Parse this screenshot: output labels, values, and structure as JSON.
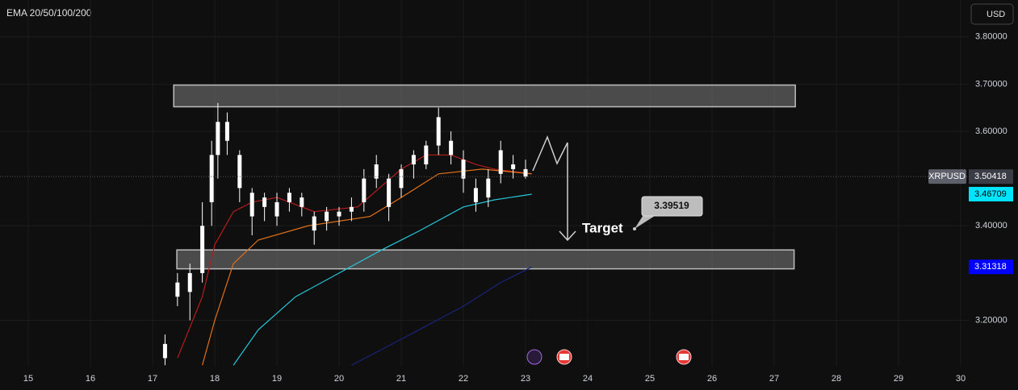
{
  "header": {
    "indicator": "EMA 20/50/100/200",
    "currency": "USD"
  },
  "chart_data": {
    "type": "candlestick",
    "symbol": "XRPUSD",
    "last_price": 3.50418,
    "xlim": [
      14.545,
      30.13
    ],
    "ylim": [
      3.102,
      3.878
    ],
    "xticks": [
      15,
      16,
      17,
      18,
      19,
      20,
      21,
      22,
      23,
      24,
      25,
      26,
      27,
      28,
      29,
      30
    ],
    "yticks": [
      {
        "value": 3.8,
        "label": "3.80000"
      },
      {
        "value": 3.7,
        "label": "3.70000"
      },
      {
        "value": 3.6,
        "label": "3.60000"
      },
      {
        "value": 3.4,
        "label": "3.40000"
      },
      {
        "value": 3.2,
        "label": "3.20000"
      }
    ],
    "grid": true,
    "color": "#ffffff",
    "candles": {
      "x": [
        17.2,
        17.4,
        17.6,
        17.8,
        17.95,
        18.05,
        18.2,
        18.4,
        18.6,
        18.8,
        19.0,
        19.2,
        19.4,
        19.6,
        19.8,
        20.0,
        20.2,
        20.4,
        20.6,
        20.8,
        21.0,
        21.2,
        21.4,
        21.6,
        21.8,
        22.0,
        22.2,
        22.4,
        22.6,
        22.8,
        23.0
      ],
      "open": [
        3.12,
        3.25,
        3.26,
        3.3,
        3.45,
        3.55,
        3.62,
        3.55,
        3.47,
        3.44,
        3.42,
        3.45,
        3.46,
        3.42,
        3.41,
        3.42,
        3.43,
        3.45,
        3.5,
        3.5,
        3.48,
        3.53,
        3.53,
        3.57,
        3.58,
        3.54,
        3.48,
        3.46,
        3.51,
        3.53,
        3.52
      ],
      "high": [
        3.17,
        3.3,
        3.32,
        3.45,
        3.58,
        3.66,
        3.64,
        3.56,
        3.48,
        3.47,
        3.47,
        3.48,
        3.47,
        3.43,
        3.44,
        3.44,
        3.46,
        3.52,
        3.55,
        3.51,
        3.53,
        3.56,
        3.58,
        3.65,
        3.6,
        3.56,
        3.5,
        3.52,
        3.58,
        3.55,
        3.54
      ],
      "low": [
        3.105,
        3.23,
        3.2,
        3.28,
        3.4,
        3.5,
        3.55,
        3.45,
        3.38,
        3.41,
        3.4,
        3.43,
        3.42,
        3.36,
        3.39,
        3.4,
        3.41,
        3.43,
        3.48,
        3.41,
        3.46,
        3.5,
        3.52,
        3.55,
        3.53,
        3.47,
        3.43,
        3.44,
        3.49,
        3.5,
        3.5
      ],
      "close": [
        3.15,
        3.28,
        3.3,
        3.4,
        3.55,
        3.62,
        3.58,
        3.48,
        3.42,
        3.46,
        3.45,
        3.47,
        3.44,
        3.39,
        3.43,
        3.43,
        3.44,
        3.5,
        3.53,
        3.44,
        3.52,
        3.55,
        3.57,
        3.63,
        3.55,
        3.5,
        3.45,
        3.5,
        3.56,
        3.52,
        3.50418
      ]
    },
    "series": [
      {
        "color": "#b71c1c",
        "x": [
          17.4,
          17.8,
          18.0,
          18.3,
          18.6,
          19.0,
          19.6,
          20.3,
          21.0,
          21.4,
          21.8,
          22.2,
          22.5,
          23.1
        ],
        "values": [
          3.12,
          3.25,
          3.36,
          3.43,
          3.45,
          3.46,
          3.43,
          3.44,
          3.52,
          3.55,
          3.55,
          3.53,
          3.52,
          3.51
        ]
      },
      {
        "color": "#e0701a",
        "x": [
          17.8,
          18.0,
          18.3,
          18.7,
          19.5,
          20.5,
          21.0,
          21.6,
          22.3,
          23.1
        ],
        "values": [
          3.105,
          3.2,
          3.32,
          3.37,
          3.4,
          3.42,
          3.46,
          3.51,
          3.52,
          3.51
        ]
      },
      {
        "color": "#26c6da",
        "x": [
          18.3,
          18.7,
          19.3,
          20.0,
          20.7,
          21.3,
          22.0,
          22.5,
          23.1
        ],
        "values": [
          3.105,
          3.18,
          3.25,
          3.3,
          3.35,
          3.39,
          3.44,
          3.455,
          3.467
        ],
        "label_value": 3.46709,
        "label_color": "#00e5ff",
        "label_text_color": "#000000"
      },
      {
        "color": "#1a237e",
        "x": [
          20.2,
          21.0,
          22.0,
          22.6,
          23.1
        ],
        "values": [
          3.105,
          3.16,
          3.23,
          3.28,
          3.313
        ],
        "label_value": 3.31318,
        "label_color": "#0000ff",
        "label_text_color": "#ffffff"
      }
    ],
    "zones": [
      {
        "x": [
          17.34,
          27.34
        ],
        "y": [
          3.652,
          3.698
        ]
      },
      {
        "x": [
          17.39,
          27.32
        ],
        "y": [
          3.309,
          3.349
        ]
      }
    ],
    "annotation": {
      "text": "Target",
      "value": 3.39519
    }
  }
}
